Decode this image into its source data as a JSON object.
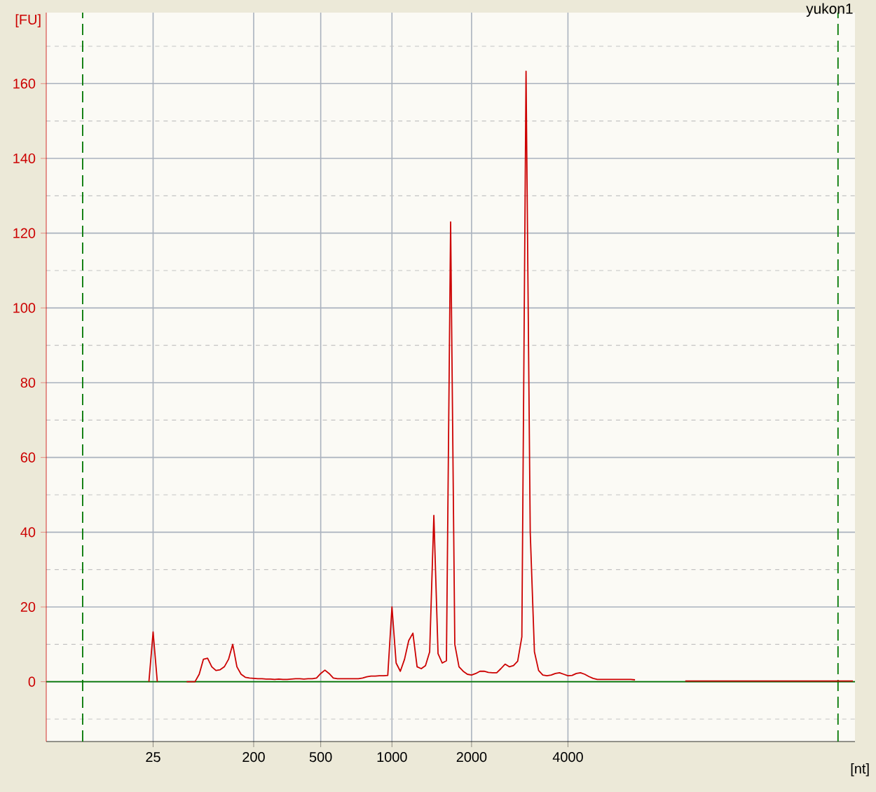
{
  "chart_data": {
    "type": "line",
    "title": "yukon1",
    "xlabel": "[nt]",
    "ylabel": "[FU]",
    "categories": [
      null,
      null,
      null,
      null,
      null,
      null,
      null,
      null,
      null,
      null,
      null,
      null,
      null,
      null,
      null,
      null,
      null,
      null,
      null,
      null,
      null,
      null,
      null,
      null,
      null,
      "25",
      null,
      null,
      null,
      null,
      null,
      null,
      null,
      null,
      null,
      null,
      null,
      null,
      null,
      null,
      null,
      null,
      null,
      null,
      null,
      null,
      null,
      null,
      null,
      "200",
      null,
      null,
      null,
      null,
      null,
      null,
      null,
      null,
      null,
      null,
      null,
      null,
      null,
      null,
      null,
      "500",
      null,
      null,
      null,
      null,
      null,
      null,
      null,
      null,
      null,
      null,
      null,
      null,
      null,
      null,
      null,
      null,
      "1000",
      null,
      null,
      null,
      null,
      null,
      null,
      null,
      null,
      null,
      null,
      null,
      null,
      null,
      null,
      null,
      null,
      null,
      null,
      "2000",
      null,
      null,
      null,
      null,
      null,
      null,
      null,
      null,
      null,
      null,
      null,
      null,
      null,
      null,
      null,
      null,
      null,
      null,
      null,
      null,
      null,
      null,
      "4000",
      null,
      null,
      null,
      null,
      null,
      null,
      null,
      null,
      null,
      null,
      null,
      null,
      null,
      null,
      null,
      null,
      null,
      null,
      null,
      null,
      null,
      null,
      null,
      null,
      null,
      null,
      null,
      null,
      null,
      null,
      null,
      null,
      null,
      null,
      null,
      null,
      null,
      null,
      null,
      null,
      null,
      null,
      null,
      null,
      null,
      null,
      null,
      null,
      null,
      null,
      null,
      null,
      null,
      null,
      null,
      null,
      null,
      null,
      null,
      null,
      null,
      null,
      null,
      null,
      null,
      null,
      null,
      null
    ],
    "series": [
      {
        "color": "#cc0000",
        "values": [
          null,
          null,
          null,
          null,
          null,
          null,
          null,
          null,
          null,
          null,
          null,
          null,
          null,
          null,
          null,
          null,
          null,
          null,
          null,
          null,
          null,
          null,
          null,
          null,
          0,
          13.3,
          0,
          null,
          null,
          null,
          null,
          null,
          null,
          0,
          0,
          0,
          2,
          6,
          6.3,
          4,
          3.0,
          3.2,
          4.0,
          6,
          10,
          4,
          2,
          1.2,
          1.0,
          0.9,
          0.8,
          0.8,
          0.7,
          0.7,
          0.6,
          0.7,
          0.6,
          0.6,
          0.7,
          0.8,
          0.8,
          0.7,
          0.8,
          0.8,
          1.0,
          2.2,
          3.1,
          2.2,
          1.0,
          0.8,
          0.8,
          0.8,
          0.8,
          0.8,
          0.8,
          1.0,
          1.3,
          1.5,
          1.5,
          1.6,
          1.6,
          1.7,
          20,
          5,
          2.8,
          6,
          11,
          13,
          4,
          3.5,
          4.3,
          8,
          44.5,
          7.5,
          5,
          5.6,
          123,
          10,
          4,
          2.8,
          2.0,
          1.8,
          2.2,
          2.8,
          2.8,
          2.5,
          2.4,
          2.4,
          3.5,
          4.7,
          4.0,
          4.3,
          5.5,
          12,
          163.3,
          40,
          8,
          3,
          1.8,
          1.6,
          1.8,
          2.2,
          2.4,
          2.0,
          1.6,
          1.7,
          2.2,
          2.4,
          2.0,
          1.4,
          0.9,
          0.6,
          0.6,
          0.6,
          0.6,
          0.6,
          0.6,
          0.6,
          0.6,
          0.6,
          0.5,
          null,
          null,
          null,
          null,
          null,
          null,
          null,
          null,
          null,
          null,
          null,
          0.2,
          0.2,
          0.2,
          0.2,
          0.2,
          0.2,
          0.2,
          0.2,
          0.2,
          0.2,
          0.2,
          0.2,
          0.2,
          0.2,
          0.2,
          0.2,
          0.2,
          0.2,
          0.2,
          0.2,
          0.2,
          0.2,
          0.2,
          0.2,
          0.2,
          0.2,
          0.2,
          0.2,
          0.2,
          0.2,
          0.2,
          0.2,
          0.2,
          0.2,
          0.2,
          0.2,
          0.2,
          0.2,
          0.2,
          0.2,
          0.2
        ]
      }
    ],
    "ylim": [
      -16,
      179
    ],
    "yticks": [
      0,
      20,
      40,
      60,
      80,
      100,
      120,
      140,
      160,
      {
        "value": -10,
        "label": null
      },
      {
        "value": 10,
        "label": null
      },
      {
        "value": 30,
        "label": null
      },
      {
        "value": 50,
        "label": null
      },
      {
        "value": 70,
        "label": null
      },
      {
        "value": 90,
        "label": null
      },
      {
        "value": 110,
        "label": null
      },
      {
        "value": 130,
        "label": null
      },
      {
        "value": 150,
        "label": null
      },
      {
        "value": 170,
        "label": null
      }
    ],
    "ref_lines": [
      {
        "axis": "y",
        "value": 0,
        "color": "#007700",
        "line_style": "solid"
      }
    ],
    "grid": true,
    "marker": "none",
    "line_style": "solid"
  }
}
